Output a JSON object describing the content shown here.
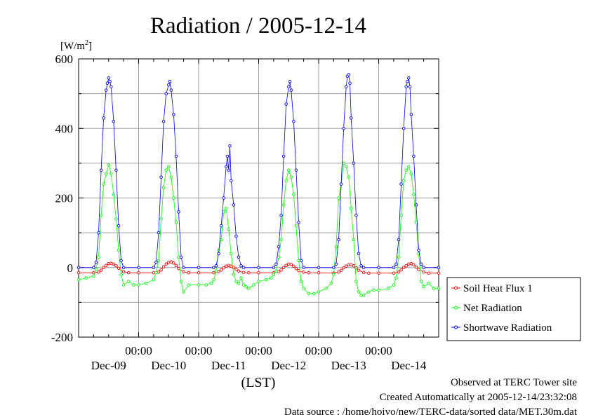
{
  "chart_data": {
    "type": "line",
    "title": "Radiation / 2005-12-14",
    "unit_label": "[W/m2]",
    "xlabel": "(LST)",
    "ylim": [
      -200,
      600
    ],
    "y_ticks": [
      600,
      400,
      200,
      0,
      -200
    ],
    "grid": true,
    "legend_position": "right, outside plot",
    "x_range_hours": [
      0,
      144
    ],
    "x_axis": {
      "day_labels": [
        "Dec-09",
        "Dec-10",
        "Dec-11",
        "Dec-12",
        "Dec-13",
        "Dec-14"
      ],
      "time_label": "00:00",
      "midnight_hours": [
        24,
        48,
        72,
        96,
        120
      ],
      "day_label_hours": [
        12,
        36,
        60,
        84,
        108,
        132
      ]
    },
    "series": [
      {
        "name": "Soil Heat Flux 1",
        "color": "#ff0000",
        "marker": "circle",
        "x": [
          0,
          6,
          8,
          9,
          10,
          11,
          12,
          13,
          14,
          15,
          16,
          18,
          20,
          24,
          30,
          32,
          33,
          34,
          35,
          36,
          37,
          38,
          39,
          40,
          42,
          44,
          48,
          54,
          56,
          57,
          58,
          59,
          60,
          61,
          62,
          63,
          64,
          66,
          68,
          72,
          78,
          80,
          81,
          82,
          83,
          84,
          85,
          86,
          87,
          88,
          90,
          92,
          96,
          102,
          104,
          105,
          106,
          107,
          108,
          109,
          110,
          111,
          112,
          114,
          116,
          120,
          126,
          128,
          129,
          130,
          131,
          132,
          133,
          134,
          135,
          136,
          138,
          140,
          144
        ],
        "y": [
          -15,
          -15,
          -13,
          -8,
          0,
          6,
          11,
          12,
          10,
          5,
          -2,
          -12,
          -15,
          -15,
          -15,
          -13,
          -7,
          2,
          10,
          15,
          16,
          13,
          6,
          -3,
          -12,
          -15,
          -15,
          -15,
          -12,
          -7,
          -1,
          4,
          6,
          4,
          0,
          -5,
          -10,
          -14,
          -15,
          -15,
          -15,
          -12,
          -7,
          0,
          6,
          10,
          9,
          4,
          -3,
          -9,
          -13,
          -15,
          -15,
          -16,
          -13,
          -8,
          -1,
          4,
          8,
          8,
          5,
          -1,
          -8,
          -14,
          -16,
          -16,
          -16,
          -13,
          -7,
          0,
          5,
          10,
          11,
          8,
          1,
          -6,
          -13,
          -16,
          -16
        ]
      },
      {
        "name": "Net Radiation",
        "color": "#00ff00",
        "marker": "circle",
        "x": [
          0,
          3,
          6,
          7,
          8,
          9,
          10,
          11,
          12,
          13,
          14,
          15,
          16,
          17,
          18,
          20,
          22,
          24,
          27,
          30,
          31,
          32,
          33,
          34,
          35,
          36,
          37,
          38,
          39,
          40,
          41,
          42,
          44,
          48,
          51,
          53,
          54,
          55,
          56,
          57,
          58,
          59,
          60,
          61,
          62,
          63,
          64,
          65,
          66,
          67,
          68,
          70,
          72,
          75,
          77,
          78,
          79,
          80,
          81,
          82,
          83,
          84,
          85,
          86,
          87,
          88,
          89,
          90,
          92,
          94,
          96,
          99,
          101,
          102,
          103,
          104,
          105,
          106,
          107,
          108,
          109,
          110,
          111,
          112,
          113,
          114,
          116,
          118,
          120,
          124,
          126,
          127,
          128,
          129,
          130,
          131,
          132,
          133,
          134,
          135,
          136,
          137,
          138,
          140,
          142,
          144
        ],
        "y": [
          -35,
          -30,
          -25,
          -5,
          30,
          150,
          240,
          270,
          295,
          270,
          210,
          140,
          50,
          -20,
          -50,
          -40,
          -50,
          -50,
          -45,
          -35,
          -15,
          20,
          140,
          230,
          280,
          290,
          260,
          200,
          130,
          30,
          -40,
          -70,
          -50,
          -50,
          -50,
          -45,
          -35,
          -10,
          50,
          80,
          160,
          170,
          110,
          40,
          -20,
          -40,
          -45,
          -30,
          -50,
          -55,
          -60,
          -50,
          -40,
          -35,
          -30,
          -20,
          -10,
          30,
          80,
          180,
          250,
          280,
          260,
          210,
          120,
          20,
          -40,
          -60,
          -75,
          -75,
          -70,
          -60,
          -45,
          -20,
          60,
          200,
          240,
          300,
          290,
          260,
          170,
          80,
          -40,
          -70,
          -80,
          -80,
          -70,
          -65,
          -65,
          -60,
          -50,
          -30,
          30,
          150,
          250,
          280,
          290,
          270,
          210,
          130,
          40,
          -40,
          -55,
          -45,
          -60,
          -60
        ]
      },
      {
        "name": "Shortwave Radiation",
        "color": "#0000ff",
        "marker": "circle",
        "x": [
          0,
          6,
          7,
          8,
          9,
          10,
          11,
          11.5,
          12,
          12.5,
          13,
          14,
          15,
          16,
          17,
          18,
          24,
          30,
          31,
          32,
          33,
          34,
          35,
          36,
          36.5,
          37,
          38,
          39,
          40,
          41,
          42,
          48,
          54,
          55,
          56,
          57,
          58,
          59,
          59.5,
          60,
          60.5,
          61,
          62,
          63,
          64,
          65,
          66,
          72,
          78,
          79,
          80,
          81,
          82,
          83,
          84,
          84.5,
          85,
          86,
          87,
          88,
          89,
          90,
          96,
          102,
          103,
          104,
          105,
          106,
          107,
          107.5,
          108,
          108.5,
          109,
          110,
          111,
          112,
          113,
          114,
          120,
          126,
          127,
          128,
          129,
          130,
          131,
          131.5,
          132,
          132.5,
          133,
          134,
          135,
          136,
          137,
          138,
          144
        ],
        "y": [
          0,
          0,
          15,
          100,
          280,
          430,
          510,
          530,
          545,
          535,
          520,
          420,
          280,
          120,
          20,
          0,
          0,
          0,
          15,
          100,
          260,
          420,
          500,
          525,
          535,
          510,
          440,
          320,
          160,
          30,
          0,
          0,
          0,
          5,
          40,
          120,
          200,
          290,
          320,
          280,
          350,
          250,
          180,
          90,
          30,
          5,
          0,
          0,
          0,
          10,
          60,
          150,
          320,
          470,
          520,
          535,
          510,
          420,
          280,
          130,
          20,
          0,
          0,
          0,
          10,
          80,
          240,
          400,
          520,
          550,
          555,
          530,
          430,
          300,
          150,
          40,
          5,
          0,
          0,
          0,
          10,
          80,
          240,
          400,
          520,
          535,
          545,
          520,
          440,
          320,
          180,
          50,
          10,
          0,
          0
        ]
      }
    ]
  },
  "footer": {
    "observed": "Observed at TERC Tower site",
    "created": "Created Automatically at 2005-12-14/23:32:08",
    "source": "Data source : /home/hoivo/new/TERC-data/sorted  data/MET.30m.dat"
  }
}
